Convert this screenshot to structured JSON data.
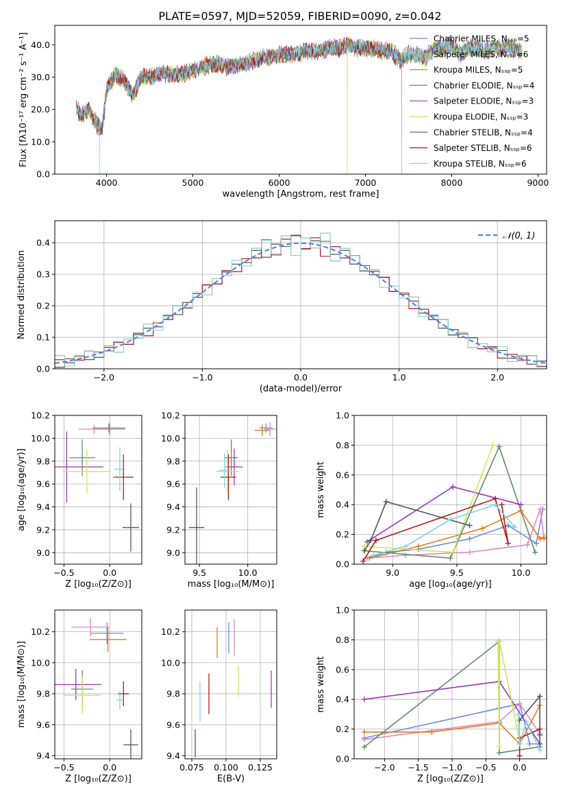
{
  "title": "PLATE=0597, MJD=52059, FIBERID=0090, z=0.042",
  "chart_data": [
    {
      "id": "spectrum",
      "type": "line",
      "xlabel": "wavelength [Angstrom, rest frame]",
      "ylabel": "Flux [fλ10⁻¹⁷ erg cm⁻² s⁻¹ A⁻¹]",
      "xlim": [
        3400,
        9100
      ],
      "ylim": [
        0,
        46
      ],
      "xticks": [
        4000,
        5000,
        6000,
        7000,
        8000,
        9000
      ],
      "yticks": [
        0,
        10,
        20,
        30,
        40
      ],
      "grid": false,
      "legend_position": "top-right",
      "continuum": {
        "x": [
          3650,
          3700,
          3800,
          3850,
          3900,
          3950,
          4000,
          4100,
          4200,
          4300,
          4400,
          4500,
          4600,
          4700,
          4800,
          4900,
          5000,
          5100,
          5200,
          5300,
          5400,
          5500,
          5600,
          5700,
          5800,
          5900,
          6000,
          6100,
          6200,
          6300,
          6400,
          6500,
          6600,
          6700,
          6800,
          6900,
          7000,
          7100,
          7200,
          7300,
          7400,
          7500,
          7600,
          7700,
          7800,
          7900,
          8000,
          8100,
          8200,
          8300,
          8400,
          8500,
          8600,
          8700,
          8800
        ],
        "y": [
          21,
          18,
          20,
          17,
          15,
          14,
          26,
          31,
          29,
          24,
          30,
          30,
          31,
          31,
          31,
          31,
          32,
          33,
          34,
          34,
          33,
          34,
          34,
          35,
          36,
          36,
          37,
          37,
          37,
          38,
          38,
          38,
          39,
          39,
          40,
          39,
          39,
          39,
          38,
          38,
          35,
          37,
          37,
          36,
          39,
          39,
          40,
          37,
          39,
          39,
          38,
          39,
          39,
          39,
          38
        ]
      },
      "series": [
        {
          "name": "Chabrier MILES, Nₛₛₚ=5",
          "color": "#6a8bd9"
        },
        {
          "name": "Salpeter MILES, Nₛₛₚ=6",
          "color": "#e484c0"
        },
        {
          "name": "Kroupa MILES, Nₛₛₚ=5",
          "color": "#e07b22"
        },
        {
          "name": "Chabrier ELODIE, Nₛₛₚ=4",
          "color": "#5e8a66"
        },
        {
          "name": "Salpeter ELODIE, Nₛₛₚ=3",
          "color": "#9a35b6"
        },
        {
          "name": "Kroupa ELODIE, Nₛₛₚ=3",
          "color": "#cde653"
        },
        {
          "name": "Chabrier STELIB, Nₛₛₚ=4",
          "color": "#545454"
        },
        {
          "name": "Salpeter STELIB, Nₛₛₚ=6",
          "color": "#ad1a1a"
        },
        {
          "name": "Kroupa STELIB, Nₛₛₚ=6",
          "color": "#7ed3e2"
        }
      ]
    },
    {
      "id": "residuals",
      "type": "line",
      "xlabel": "(data-model)/error",
      "ylabel": "Normed distribution",
      "xlim": [
        -2.5,
        2.5
      ],
      "ylim": [
        0,
        0.47
      ],
      "xticks": [
        -2,
        -1,
        0,
        1,
        2
      ],
      "yticks": [
        0.0,
        0.1,
        0.2,
        0.3,
        0.4
      ],
      "grid": true,
      "legend_position": "top-right",
      "gaussian": {
        "name": "𝒩(0, 1)",
        "mu": 0,
        "sigma": 1,
        "color": "#5b87d8"
      },
      "bin_edges": [
        -2.5,
        -2.4,
        -2.3,
        -2.2,
        -2.1,
        -2.0,
        -1.9,
        -1.8,
        -1.7,
        -1.6,
        -1.5,
        -1.4,
        -1.3,
        -1.2,
        -1.1,
        -1.0,
        -0.9,
        -0.8,
        -0.7,
        -0.6,
        -0.5,
        -0.4,
        -0.3,
        -0.2,
        -0.1,
        0.0,
        0.1,
        0.2,
        0.3,
        0.4,
        0.5,
        0.6,
        0.7,
        0.8,
        0.9,
        1.0,
        1.1,
        1.2,
        1.3,
        1.4,
        1.5,
        1.6,
        1.7,
        1.8,
        1.9,
        2.0,
        2.1,
        2.2,
        2.3,
        2.4,
        2.5
      ],
      "jitter": [
        0.03,
        -0.02,
        0.025,
        -0.035,
        0.015,
        -0.01,
        0.04,
        -0.03,
        0.02
      ],
      "series": [
        {
          "color": "#6a8bd9"
        },
        {
          "color": "#e484c0"
        },
        {
          "color": "#e07b22"
        },
        {
          "color": "#5e8a66"
        },
        {
          "color": "#9a35b6"
        },
        {
          "color": "#cde653"
        },
        {
          "color": "#545454"
        },
        {
          "color": "#ad1a1a"
        },
        {
          "color": "#7ed3e2"
        }
      ]
    },
    {
      "id": "age-vs-Z",
      "type": "scatter",
      "xlabel": "Z [log₁₀(Z/Z⊙)]",
      "ylabel": "age  [log₁₀(age/yr)]",
      "xlim": [
        -0.6,
        0.35
      ],
      "ylim": [
        8.9,
        10.2
      ],
      "xticks": [
        -0.5,
        0.0
      ],
      "yticks": [
        9.0,
        9.2,
        9.4,
        9.6,
        9.8,
        10.0,
        10.2
      ],
      "grid": true,
      "points": [
        {
          "x": -0.01,
          "y": 10.09,
          "xerr": 0.18,
          "yerr": 0.04,
          "color": "#6a8bd9"
        },
        {
          "x": -0.17,
          "y": 10.08,
          "xerr": 0.17,
          "yerr": 0.04,
          "color": "#e484c0"
        },
        {
          "x": 0.0,
          "y": 10.08,
          "xerr": 0.17,
          "yerr": 0.05,
          "color": "#e07b22"
        },
        {
          "x": -0.3,
          "y": 9.83,
          "xerr": 0.14,
          "yerr": 0.16,
          "color": "#5e8a66"
        },
        {
          "x": -0.47,
          "y": 9.75,
          "xerr": 0.4,
          "yerr": 0.31,
          "color": "#9a35b6"
        },
        {
          "x": -0.25,
          "y": 9.71,
          "xerr": 0.26,
          "yerr": 0.19,
          "color": "#cde653"
        },
        {
          "x": 0.23,
          "y": 9.22,
          "xerr": 0.09,
          "yerr": 0.21,
          "color": "#545454"
        },
        {
          "x": 0.15,
          "y": 9.66,
          "xerr": 0.11,
          "yerr": 0.2,
          "color": "#ad1a1a"
        },
        {
          "x": 0.11,
          "y": 9.73,
          "xerr": 0.06,
          "yerr": 0.19,
          "color": "#7ed3e2"
        }
      ]
    },
    {
      "id": "age-vs-mass",
      "type": "scatter",
      "xlabel": "mass [log₁₀(M/M⊙)]",
      "ylabel": "",
      "xlim": [
        9.35,
        10.3
      ],
      "ylim": [
        8.9,
        10.2
      ],
      "xticks": [
        9.5,
        10.0
      ],
      "yticks": [
        9.0,
        9.2,
        9.4,
        9.6,
        9.8,
        10.0,
        10.2
      ],
      "grid": true,
      "points": [
        {
          "x": 10.19,
          "y": 10.09,
          "xerr": 0.07,
          "yerr": 0.04,
          "color": "#6a8bd9"
        },
        {
          "x": 10.23,
          "y": 10.08,
          "xerr": 0.06,
          "yerr": 0.06,
          "color": "#e484c0"
        },
        {
          "x": 10.15,
          "y": 10.07,
          "xerr": 0.08,
          "yerr": 0.05,
          "color": "#e07b22"
        },
        {
          "x": 9.83,
          "y": 9.83,
          "xerr": 0.07,
          "yerr": 0.16,
          "color": "#5e8a66"
        },
        {
          "x": 9.86,
          "y": 9.75,
          "xerr": 0.09,
          "yerr": 0.16,
          "color": "#9a35b6"
        },
        {
          "x": 9.79,
          "y": 9.71,
          "xerr": 0.12,
          "yerr": 0.19,
          "color": "#cde653"
        },
        {
          "x": 9.47,
          "y": 9.22,
          "xerr": 0.08,
          "yerr": 0.35,
          "color": "#545454"
        },
        {
          "x": 9.8,
          "y": 9.66,
          "xerr": 0.08,
          "yerr": 0.2,
          "color": "#ad1a1a"
        },
        {
          "x": 9.76,
          "y": 9.72,
          "xerr": 0.06,
          "yerr": 0.15,
          "color": "#7ed3e2"
        }
      ]
    },
    {
      "id": "weight-vs-age",
      "type": "line",
      "xlabel": "age  [log₁₀(age/yr)]",
      "ylabel": "mass weight",
      "xlim": [
        8.7,
        10.2
      ],
      "ylim": [
        0.0,
        1.0
      ],
      "xticks": [
        9.0,
        9.5,
        10.0
      ],
      "yticks": [
        0.0,
        0.2,
        0.4,
        0.6,
        0.8,
        1.0
      ],
      "grid": true,
      "series": [
        {
          "color": "#6a8bd9",
          "x": [
            8.8,
            8.95,
            9.2,
            9.6,
            9.9,
            10.12,
            10.17
          ],
          "y": [
            0.04,
            0.08,
            0.1,
            0.17,
            0.26,
            0.14,
            0.37
          ]
        },
        {
          "color": "#e484c0",
          "x": [
            8.8,
            9.1,
            9.6,
            10.05,
            10.15,
            10.18
          ],
          "y": [
            0.04,
            0.06,
            0.08,
            0.13,
            0.37,
            0.17
          ]
        },
        {
          "color": "#e07b22",
          "x": [
            8.82,
            9.2,
            9.7,
            10.0,
            10.15,
            10.18
          ],
          "y": [
            0.04,
            0.12,
            0.24,
            0.36,
            0.17,
            0.18
          ]
        },
        {
          "color": "#5e8a66",
          "x": [
            8.78,
            9.45,
            9.83,
            10.11
          ],
          "y": [
            0.09,
            0.04,
            0.79,
            0.08
          ]
        },
        {
          "color": "#9a35b6",
          "x": [
            8.8,
            9.47,
            10.0
          ],
          "y": [
            0.15,
            0.52,
            0.4
          ]
        },
        {
          "color": "#cde653",
          "x": [
            8.78,
            9.47,
            9.78
          ],
          "y": [
            0.12,
            0.08,
            0.8
          ]
        },
        {
          "color": "#545454",
          "x": [
            8.78,
            8.83,
            8.95,
            9.6
          ],
          "y": [
            0.09,
            0.16,
            0.42,
            0.26
          ]
        },
        {
          "color": "#ad1a1a",
          "x": [
            8.77,
            8.87,
            9.8,
            9.9,
            9.85
          ],
          "y": [
            0.02,
            0.16,
            0.44,
            0.14,
            0.4
          ]
        },
        {
          "color": "#7ed3e2",
          "x": [
            8.85,
            9.1,
            9.45,
            9.8,
            9.95
          ],
          "y": [
            0.06,
            0.12,
            0.3,
            0.4,
            0.25
          ]
        }
      ]
    },
    {
      "id": "mass-vs-Z",
      "type": "scatter",
      "xlabel": "Z [log₁₀(Z/Z⊙)]",
      "ylabel": "mass [log₁₀(M/M⊙)]",
      "xlim": [
        -0.6,
        0.35
      ],
      "ylim": [
        9.38,
        10.34
      ],
      "xticks": [
        -0.5,
        0.0
      ],
      "yticks": [
        9.4,
        9.6,
        9.8,
        10.0,
        10.2
      ],
      "grid": true,
      "points": [
        {
          "x": -0.03,
          "y": 10.19,
          "xerr": 0.18,
          "yerr": 0.07,
          "color": "#6a8bd9"
        },
        {
          "x": -0.21,
          "y": 10.23,
          "xerr": 0.21,
          "yerr": 0.06,
          "color": "#e484c0"
        },
        {
          "x": -0.02,
          "y": 10.15,
          "xerr": 0.2,
          "yerr": 0.08,
          "color": "#e07b22"
        },
        {
          "x": -0.3,
          "y": 9.83,
          "xerr": 0.12,
          "yerr": 0.12,
          "color": "#5e8a66"
        },
        {
          "x": -0.37,
          "y": 9.86,
          "xerr": 0.28,
          "yerr": 0.1,
          "color": "#9a35b6"
        },
        {
          "x": -0.3,
          "y": 9.79,
          "xerr": 0.2,
          "yerr": 0.12,
          "color": "#cde653"
        },
        {
          "x": 0.23,
          "y": 9.47,
          "xerr": 0.08,
          "yerr": 0.1,
          "color": "#545454"
        },
        {
          "x": 0.15,
          "y": 9.8,
          "xerr": 0.06,
          "yerr": 0.08,
          "color": "#ad1a1a"
        },
        {
          "x": 0.11,
          "y": 9.76,
          "xerr": 0.04,
          "yerr": 0.06,
          "color": "#7ed3e2"
        }
      ]
    },
    {
      "id": "mass-vs-ebv",
      "type": "scatter",
      "xlabel": "E(B-V)",
      "ylabel": "",
      "xlim": [
        0.07,
        0.137
      ],
      "ylim": [
        9.38,
        10.34
      ],
      "xticks": [
        0.075,
        0.1,
        0.125
      ],
      "tick_labels": [
        "0.075",
        "0.100",
        "0.125"
      ],
      "yticks": [
        9.4,
        9.6,
        9.8,
        10.0,
        10.2
      ],
      "grid": true,
      "points": [
        {
          "x": 0.102,
          "y": 10.16,
          "xerr": 0,
          "yerr": 0.1,
          "color": "#6a8bd9"
        },
        {
          "x": 0.106,
          "y": 10.16,
          "xerr": 0,
          "yerr": 0.12,
          "color": "#e484c0"
        },
        {
          "x": 0.0935,
          "y": 10.13,
          "xerr": 0,
          "yerr": 0.1,
          "color": "#e07b22"
        },
        {
          "x": 0.109,
          "y": 9.88,
          "xerr": 0,
          "yerr": 0.1,
          "color": "#cde653"
        },
        {
          "x": 0.133,
          "y": 9.83,
          "xerr": 0,
          "yerr": 0.12,
          "color": "#9a35b6"
        },
        {
          "x": 0.0775,
          "y": 9.48,
          "xerr": 0,
          "yerr": 0.09,
          "color": "#545454"
        },
        {
          "x": 0.0875,
          "y": 9.8,
          "xerr": 0,
          "yerr": 0.13,
          "color": "#ad1a1a"
        },
        {
          "x": 0.081,
          "y": 9.75,
          "xerr": 0,
          "yerr": 0.13,
          "color": "#7ed3e2"
        }
      ]
    },
    {
      "id": "weight-vs-Z",
      "type": "line",
      "xlabel": "Z [log₁₀(Z/Z⊙)]",
      "ylabel": "mass weight",
      "xlim": [
        -2.45,
        0.4
      ],
      "ylim": [
        0.0,
        1.0
      ],
      "xticks": [
        -2.0,
        -1.5,
        -1.0,
        -0.5,
        0.0
      ],
      "yticks": [
        0.0,
        0.2,
        0.4,
        0.6,
        0.8,
        1.0
      ],
      "grid": true,
      "series": [
        {
          "color": "#6a8bd9",
          "x": [
            -2.3,
            -0.3,
            0.0,
            0.15,
            0.3
          ],
          "y": [
            0.14,
            0.34,
            0.37,
            0.1,
            0.1
          ]
        },
        {
          "color": "#e484c0",
          "x": [
            -2.3,
            -0.3,
            0.0,
            0.3
          ],
          "y": [
            0.13,
            0.25,
            0.37,
            0.17
          ]
        },
        {
          "color": "#e07b22",
          "x": [
            -2.3,
            -1.3,
            -0.3,
            0.0,
            0.3
          ],
          "y": [
            0.18,
            0.18,
            0.24,
            0.1,
            0.36
          ]
        },
        {
          "color": "#5e8a66",
          "x": [
            -2.3,
            -0.3,
            -0.3,
            0.3
          ],
          "y": [
            0.08,
            0.79,
            0.04,
            0.08
          ]
        },
        {
          "color": "#9a35b6",
          "x": [
            -2.3,
            -0.3,
            0.3
          ],
          "y": [
            0.4,
            0.52,
            0.1
          ]
        },
        {
          "color": "#cde653",
          "x": [
            -0.32,
            -0.3,
            -0.3,
            0.0
          ],
          "y": [
            0.79,
            0.08,
            0.79,
            0.12
          ]
        },
        {
          "color": "#545454",
          "x": [
            0.0,
            0.3,
            0.3,
            0.3
          ],
          "y": [
            0.26,
            0.42,
            0.16,
            0.1
          ]
        },
        {
          "color": "#ad1a1a",
          "x": [
            0.0,
            0.0,
            0.3
          ],
          "y": [
            0.02,
            0.14,
            0.2
          ]
        },
        {
          "color": "#7ed3e2",
          "x": [
            -0.02,
            0.0,
            0.1,
            0.3
          ],
          "y": [
            0.3,
            0.1,
            0.25,
            0.06
          ]
        }
      ]
    }
  ]
}
